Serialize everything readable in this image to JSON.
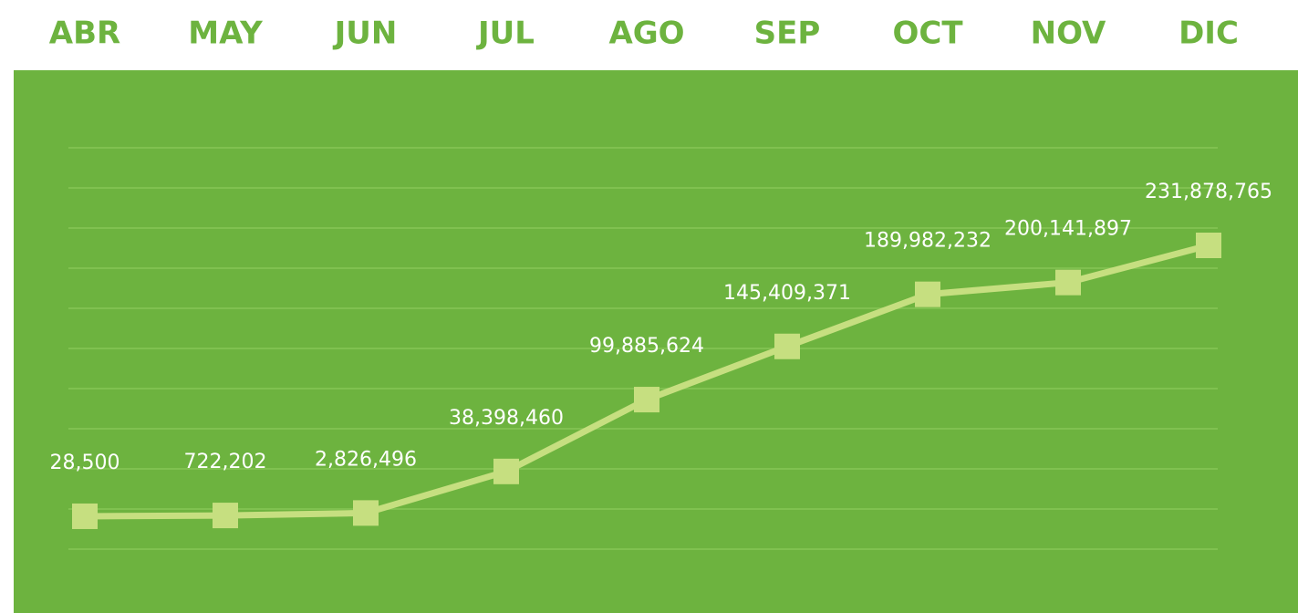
{
  "chart_data": {
    "type": "line",
    "categories": [
      "ABR",
      "MAY",
      "JUN",
      "JUL",
      "AGO",
      "SEP",
      "OCT",
      "NOV",
      "DIC"
    ],
    "series": [
      {
        "color": "#c6df80",
        "values": [
          28500,
          722202,
          2826496,
          38398460,
          99885624,
          145409371,
          189982232,
          200141897,
          231878765
        ],
        "value_labels": [
          "28,500",
          "722,202",
          "2,826,496",
          "38,398,460",
          "99,885,624",
          "145,409,371",
          "189,982,232",
          "200,141,897",
          "231,878,765"
        ]
      }
    ]
  }
}
